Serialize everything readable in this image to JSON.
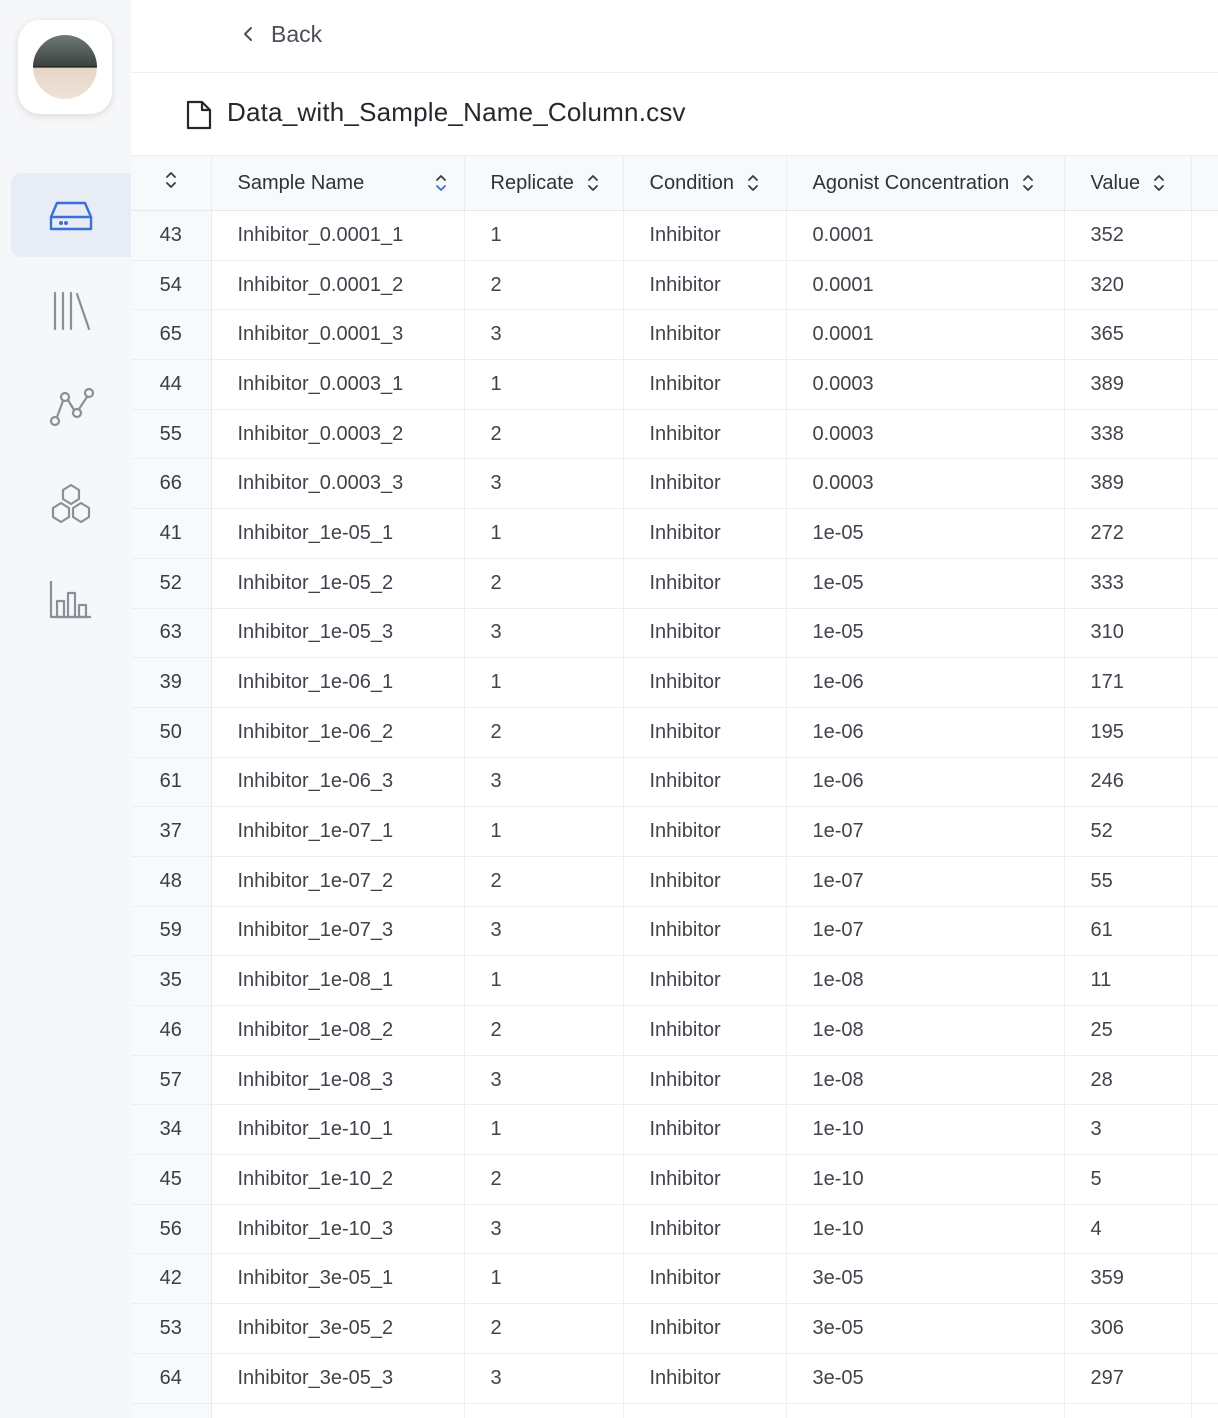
{
  "header": {
    "back_label": "Back",
    "file_name": "Data_with_Sample_Name_Column.csv"
  },
  "sidebar": {
    "items": [
      {
        "icon": "drive-icon",
        "active": true
      },
      {
        "icon": "library-icon",
        "active": false
      },
      {
        "icon": "graph-nodes-icon",
        "active": false
      },
      {
        "icon": "hexagons-icon",
        "active": false
      },
      {
        "icon": "bar-chart-icon",
        "active": false
      }
    ]
  },
  "table": {
    "columns": [
      "Sample Name",
      "Replicate",
      "Condition",
      "Agonist Concentration",
      "Value"
    ],
    "rows": [
      [
        "43",
        "Inhibitor_0.0001_1",
        "1",
        "Inhibitor",
        "0.0001",
        "352"
      ],
      [
        "54",
        "Inhibitor_0.0001_2",
        "2",
        "Inhibitor",
        "0.0001",
        "320"
      ],
      [
        "65",
        "Inhibitor_0.0001_3",
        "3",
        "Inhibitor",
        "0.0001",
        "365"
      ],
      [
        "44",
        "Inhibitor_0.0003_1",
        "1",
        "Inhibitor",
        "0.0003",
        "389"
      ],
      [
        "55",
        "Inhibitor_0.0003_2",
        "2",
        "Inhibitor",
        "0.0003",
        "338"
      ],
      [
        "66",
        "Inhibitor_0.0003_3",
        "3",
        "Inhibitor",
        "0.0003",
        "389"
      ],
      [
        "41",
        "Inhibitor_1e-05_1",
        "1",
        "Inhibitor",
        "1e-05",
        "272"
      ],
      [
        "52",
        "Inhibitor_1e-05_2",
        "2",
        "Inhibitor",
        "1e-05",
        "333"
      ],
      [
        "63",
        "Inhibitor_1e-05_3",
        "3",
        "Inhibitor",
        "1e-05",
        "310"
      ],
      [
        "39",
        "Inhibitor_1e-06_1",
        "1",
        "Inhibitor",
        "1e-06",
        "171"
      ],
      [
        "50",
        "Inhibitor_1e-06_2",
        "2",
        "Inhibitor",
        "1e-06",
        "195"
      ],
      [
        "61",
        "Inhibitor_1e-06_3",
        "3",
        "Inhibitor",
        "1e-06",
        "246"
      ],
      [
        "37",
        "Inhibitor_1e-07_1",
        "1",
        "Inhibitor",
        "1e-07",
        "52"
      ],
      [
        "48",
        "Inhibitor_1e-07_2",
        "2",
        "Inhibitor",
        "1e-07",
        "55"
      ],
      [
        "59",
        "Inhibitor_1e-07_3",
        "3",
        "Inhibitor",
        "1e-07",
        "61"
      ],
      [
        "35",
        "Inhibitor_1e-08_1",
        "1",
        "Inhibitor",
        "1e-08",
        "11"
      ],
      [
        "46",
        "Inhibitor_1e-08_2",
        "2",
        "Inhibitor",
        "1e-08",
        "25"
      ],
      [
        "57",
        "Inhibitor_1e-08_3",
        "3",
        "Inhibitor",
        "1e-08",
        "28"
      ],
      [
        "34",
        "Inhibitor_1e-10_1",
        "1",
        "Inhibitor",
        "1e-10",
        "3"
      ],
      [
        "45",
        "Inhibitor_1e-10_2",
        "2",
        "Inhibitor",
        "1e-10",
        "5"
      ],
      [
        "56",
        "Inhibitor_1e-10_3",
        "3",
        "Inhibitor",
        "1e-10",
        "4"
      ],
      [
        "42",
        "Inhibitor_3e-05_1",
        "1",
        "Inhibitor",
        "3e-05",
        "359"
      ],
      [
        "53",
        "Inhibitor_3e-05_2",
        "2",
        "Inhibitor",
        "3e-05",
        "306"
      ],
      [
        "64",
        "Inhibitor_3e-05_3",
        "3",
        "Inhibitor",
        "3e-05",
        "297"
      ],
      [
        "",
        "",
        "",
        "",
        "",
        ""
      ]
    ]
  },
  "colors": {
    "sidebar_bg": "#f6f7f9",
    "active_nav_bg": "#e8ecf4",
    "accent_blue": "#3b6fd8",
    "icon_gray": "#8a8f99"
  }
}
